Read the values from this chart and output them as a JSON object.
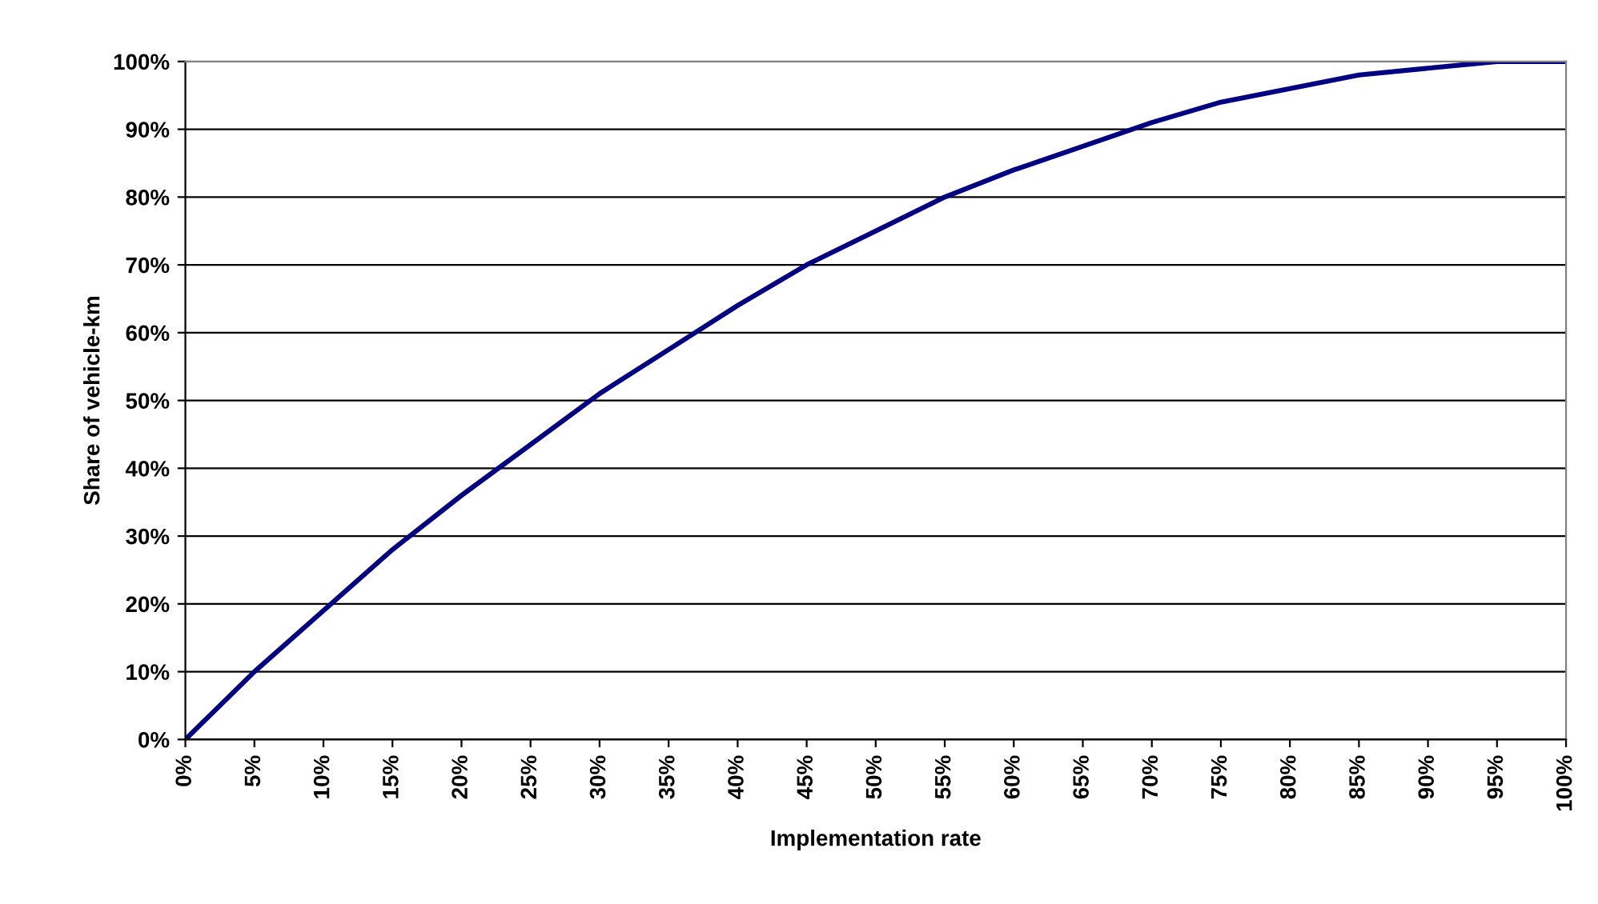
{
  "chart_data": {
    "type": "line",
    "xlabel": "Implementation rate",
    "ylabel": "Share of vehicle-km",
    "x": [
      0,
      5,
      10,
      15,
      20,
      25,
      30,
      35,
      40,
      45,
      50,
      55,
      60,
      65,
      70,
      75,
      80,
      85,
      90,
      95,
      100
    ],
    "series": [
      {
        "color": "#000080",
        "values": [
          0,
          10,
          19,
          28,
          36,
          43.5,
          51,
          57.5,
          64,
          70,
          75,
          80,
          84,
          87.5,
          91,
          94,
          96,
          98,
          99,
          100,
          100
        ]
      }
    ],
    "xlim": [
      0,
      100
    ],
    "xticks": [
      {
        "value": 0,
        "label": "0%"
      },
      {
        "value": 5,
        "label": "5%"
      },
      {
        "value": 10,
        "label": "10%"
      },
      {
        "value": 15,
        "label": "15%"
      },
      {
        "value": 20,
        "label": "20%"
      },
      {
        "value": 25,
        "label": "25%"
      },
      {
        "value": 30,
        "label": "30%"
      },
      {
        "value": 35,
        "label": "35%"
      },
      {
        "value": 40,
        "label": "40%"
      },
      {
        "value": 45,
        "label": "45%"
      },
      {
        "value": 50,
        "label": "50%"
      },
      {
        "value": 55,
        "label": "55%"
      },
      {
        "value": 60,
        "label": "60%"
      },
      {
        "value": 65,
        "label": "65%"
      },
      {
        "value": 70,
        "label": "70%"
      },
      {
        "value": 75,
        "label": "75%"
      },
      {
        "value": 80,
        "label": "80%"
      },
      {
        "value": 85,
        "label": "85%"
      },
      {
        "value": 90,
        "label": "90%"
      },
      {
        "value": 95,
        "label": "95%"
      },
      {
        "value": 100,
        "label": "100%"
      }
    ],
    "ylim": [
      0,
      100
    ],
    "yticks": [
      {
        "value": 0,
        "label": "0%"
      },
      {
        "value": 10,
        "label": "10%"
      },
      {
        "value": 20,
        "label": "20%"
      },
      {
        "value": 30,
        "label": "30%"
      },
      {
        "value": 40,
        "label": "40%"
      },
      {
        "value": 50,
        "label": "50%"
      },
      {
        "value": 60,
        "label": "60%"
      },
      {
        "value": 70,
        "label": "70%"
      },
      {
        "value": 80,
        "label": "80%"
      },
      {
        "value": 90,
        "label": "90%"
      },
      {
        "value": 100,
        "label": "100%"
      }
    ],
    "grid": "y",
    "marker": "none",
    "line_style": "solid"
  }
}
